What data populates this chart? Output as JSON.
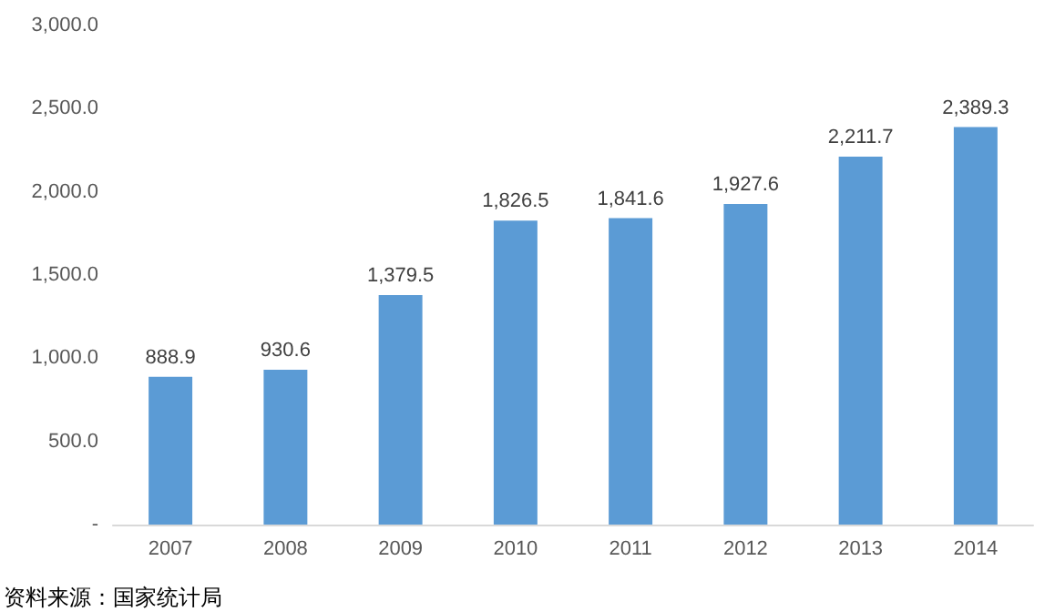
{
  "chart_data": {
    "type": "bar",
    "categories": [
      "2007",
      "2008",
      "2009",
      "2010",
      "2011",
      "2012",
      "2013",
      "2014"
    ],
    "values": [
      888.9,
      930.6,
      1379.5,
      1826.5,
      1841.6,
      1927.6,
      2211.7,
      2389.3
    ],
    "value_labels": [
      "888.9",
      "930.6",
      "1,379.5",
      "1,826.5",
      "1,841.6",
      "1,927.6",
      "2,211.7",
      "2,389.3"
    ],
    "color": "#5b9bd5",
    "ylim": [
      0,
      3000
    ],
    "yticks": [
      {
        "value": 0,
        "label": "-"
      },
      {
        "value": 500,
        "label": "500.0"
      },
      {
        "value": 1000,
        "label": "1,000.0"
      },
      {
        "value": 1500,
        "label": "1,500.0"
      },
      {
        "value": 2000,
        "label": "2,000.0"
      },
      {
        "value": 2500,
        "label": "2,500.0"
      },
      {
        "value": 3000,
        "label": "3,000.0"
      }
    ],
    "grid": false,
    "annotations": [
      "资料来源：国家统计局"
    ]
  }
}
